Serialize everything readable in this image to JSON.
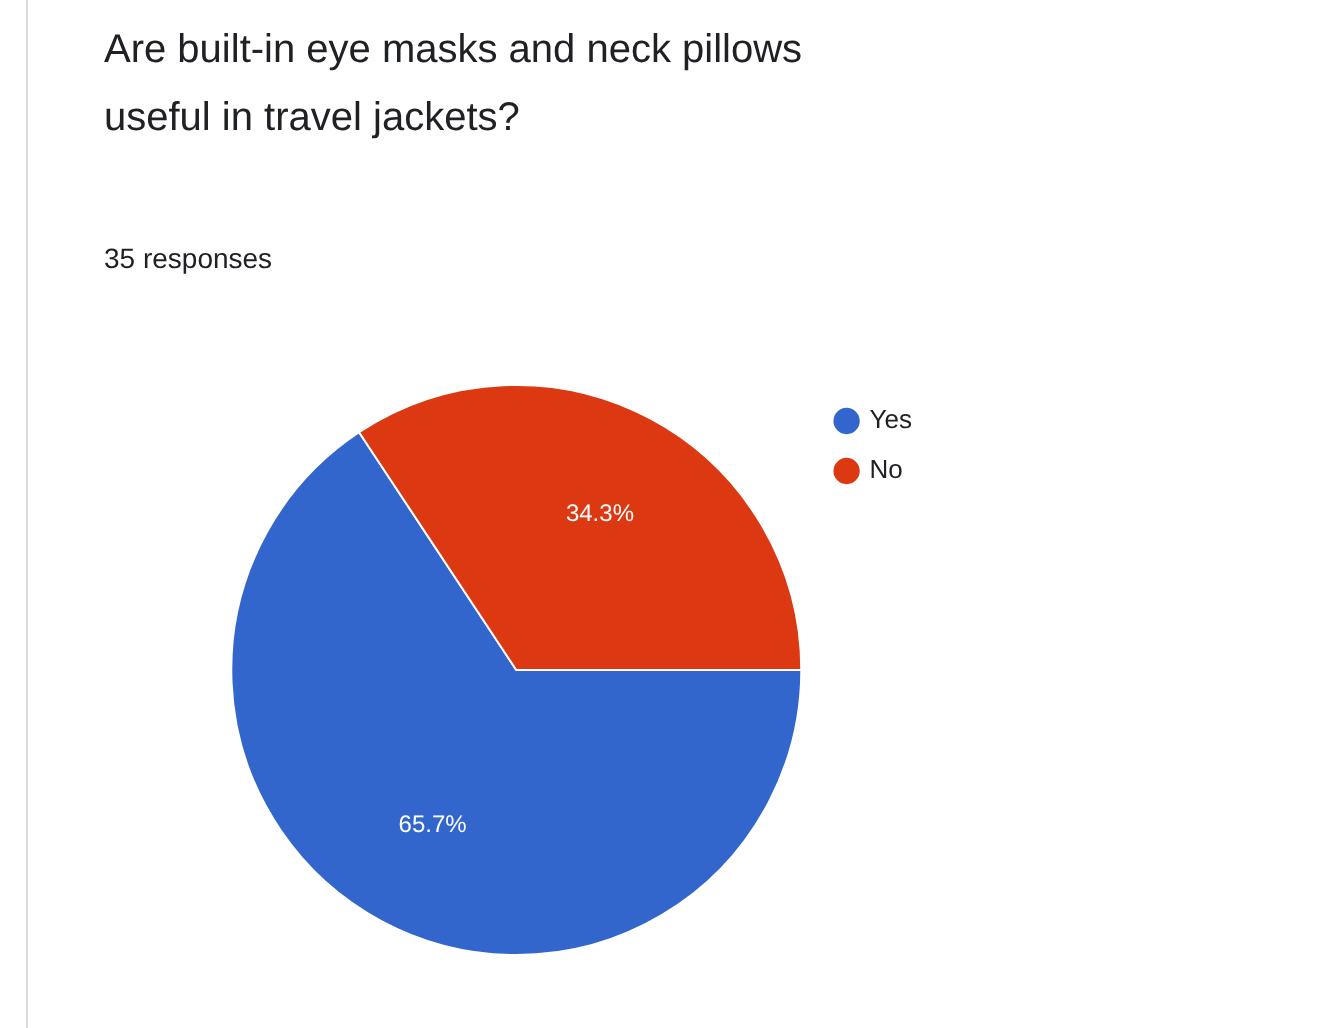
{
  "chart_data": {
    "type": "pie",
    "title": "Are built-in eye masks and neck pillows useful in travel jackets?",
    "subtitle": "35 responses",
    "categories": [
      "Yes",
      "No"
    ],
    "values": [
      65.7,
      34.3
    ],
    "colors": [
      "#3366cc",
      "#dc3912"
    ],
    "value_labels": [
      "65.7%",
      "34.3%"
    ],
    "legend": "top right"
  }
}
